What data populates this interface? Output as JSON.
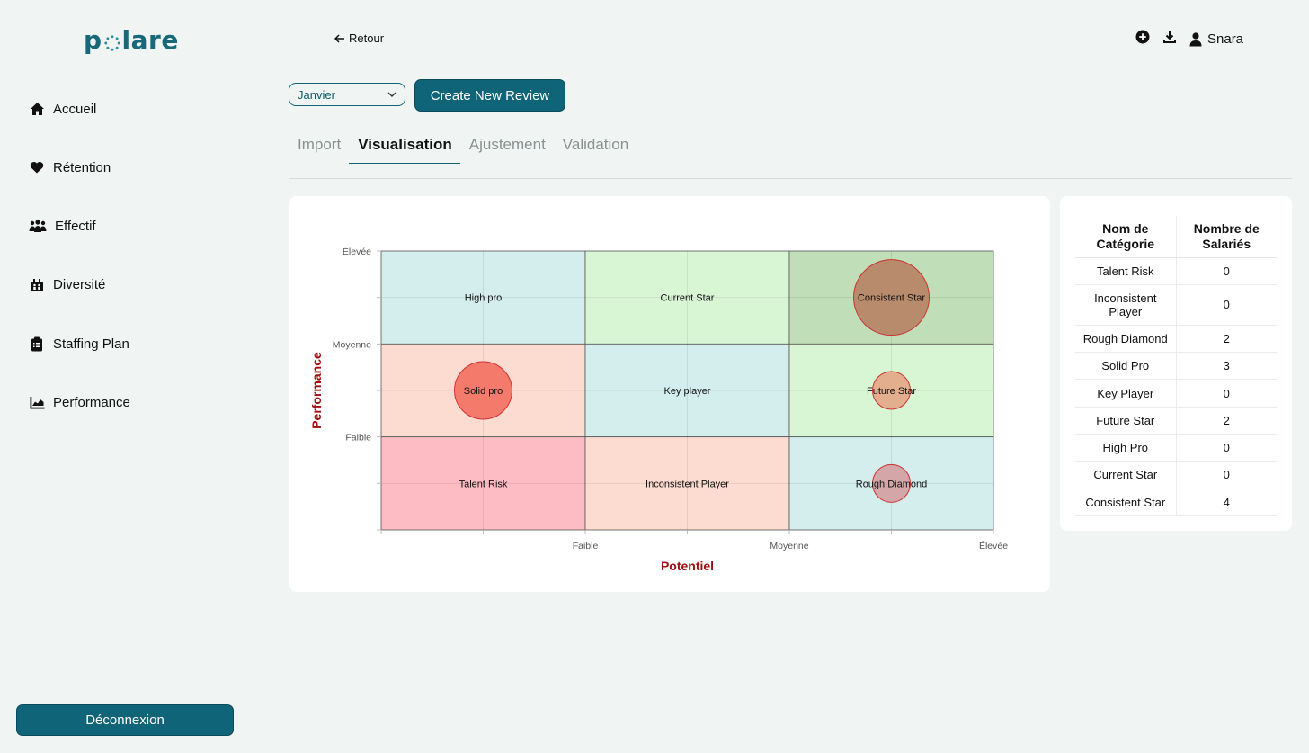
{
  "brand": {
    "logo_prefix": "p",
    "logo_suffix": "lare"
  },
  "sidebar": {
    "items": [
      {
        "label": "Accueil",
        "icon": "home-icon"
      },
      {
        "label": "Rétention",
        "icon": "heart-icon"
      },
      {
        "label": "Effectif",
        "icon": "people-icon"
      },
      {
        "label": "Diversité",
        "icon": "diversity-icon"
      },
      {
        "label": "Staffing Plan",
        "icon": "clipboard-icon"
      },
      {
        "label": "Performance",
        "icon": "chart-icon"
      }
    ],
    "logout_label": "Déconnexion"
  },
  "header": {
    "back_label": "Retour",
    "user_name": "Snara"
  },
  "controls": {
    "month_selected": "Janvier",
    "create_label": "Create New Review"
  },
  "tabs": [
    {
      "label": "Import",
      "active": false
    },
    {
      "label": "Visualisation",
      "active": true
    },
    {
      "label": "Ajustement",
      "active": false
    },
    {
      "label": "Validation",
      "active": false
    }
  ],
  "chart_data": {
    "type": "scatter",
    "xlabel": "Potentiel",
    "ylabel": "Performance",
    "x_ticks": [
      "Faible",
      "Moyenne",
      "Élevée"
    ],
    "y_ticks": [
      "Faible",
      "Moyenne",
      "Élevée"
    ],
    "grid": true,
    "cells": [
      {
        "label": "High pro",
        "col": 0,
        "row": 2,
        "color": "#d4eded"
      },
      {
        "label": "Current Star",
        "col": 1,
        "row": 2,
        "color": "#d8f5d4"
      },
      {
        "label": "Consistent Star",
        "col": 2,
        "row": 2,
        "color": "#c0deb8"
      },
      {
        "label": "Solid pro",
        "col": 0,
        "row": 1,
        "color": "#fcdcd0"
      },
      {
        "label": "Key player",
        "col": 1,
        "row": 1,
        "color": "#d4eded"
      },
      {
        "label": "Future Star",
        "col": 2,
        "row": 1,
        "color": "#d8f5d4"
      },
      {
        "label": "Talent Risk",
        "col": 0,
        "row": 0,
        "color": "#fdbcc4"
      },
      {
        "label": "Inconsistent Player",
        "col": 1,
        "row": 0,
        "color": "#fcdcd0"
      },
      {
        "label": "Rough Diamond",
        "col": 2,
        "row": 0,
        "color": "#d4eded"
      }
    ],
    "bubbles": [
      {
        "cell": "Consistent Star",
        "value": 4,
        "fill": "#b88b6c",
        "stroke": "#cc3333"
      },
      {
        "cell": "Solid pro",
        "value": 3,
        "fill": "#f47a6c",
        "stroke": "#cc3333"
      },
      {
        "cell": "Future Star",
        "value": 2,
        "fill": "#e3ae8e",
        "stroke": "#cc3333"
      },
      {
        "cell": "Rough Diamond",
        "value": 2,
        "fill": "#d4a6a8",
        "stroke": "#cc3333"
      }
    ],
    "axis_label_color": "#a01010"
  },
  "table": {
    "headers": [
      "Nom de Catégorie",
      "Nombre de Salariés"
    ],
    "rows": [
      {
        "name": "Talent Risk",
        "count": "0"
      },
      {
        "name": "Inconsistent Player",
        "count": "0"
      },
      {
        "name": "Rough Diamond",
        "count": "2"
      },
      {
        "name": "Solid Pro",
        "count": "3"
      },
      {
        "name": "Key Player",
        "count": "0"
      },
      {
        "name": "Future Star",
        "count": "2"
      },
      {
        "name": "High Pro",
        "count": "0"
      },
      {
        "name": "Current Star",
        "count": "0"
      },
      {
        "name": "Consistent Star",
        "count": "4"
      }
    ]
  }
}
